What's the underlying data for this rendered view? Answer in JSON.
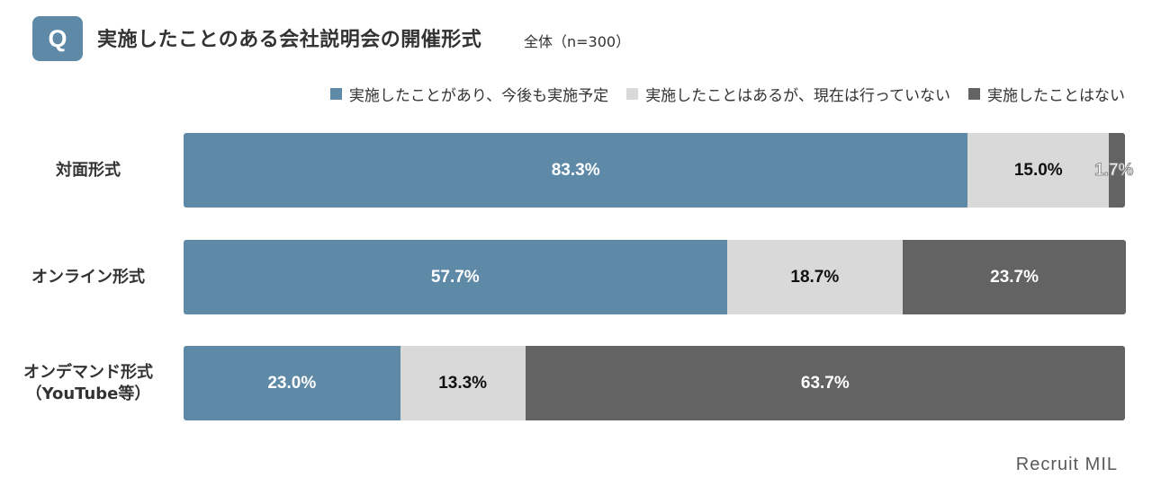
{
  "header": {
    "badge": "Q",
    "title": "実施したことのある会社説明会の開催形式",
    "subtitle": "全体（n=300）"
  },
  "brand": "Recruit MIL",
  "chart_data": {
    "type": "bar",
    "orientation": "horizontal",
    "stacked": true,
    "percent": true,
    "legend_position": "top-right",
    "categories": [
      "対面形式",
      "オンライン形式",
      "オンデマンド形式\n（YouTube等）"
    ],
    "series": [
      {
        "name": "実施したことがあり、今後も実施予定",
        "color": "#5e8aa8",
        "values": [
          83.3,
          57.7,
          23.0
        ],
        "labels": [
          "83.3%",
          "57.7%",
          "23.0%"
        ]
      },
      {
        "name": "実施したことはあるが、現在は行っていない",
        "color": "#d9d9d9",
        "values": [
          15.0,
          18.7,
          13.3
        ],
        "labels": [
          "15.0%",
          "18.7%",
          "13.3%"
        ]
      },
      {
        "name": "実施したことはない",
        "color": "#636363",
        "values": [
          1.7,
          23.7,
          63.7
        ],
        "labels": [
          "1.7%",
          "23.7%",
          "63.7%"
        ]
      }
    ]
  }
}
